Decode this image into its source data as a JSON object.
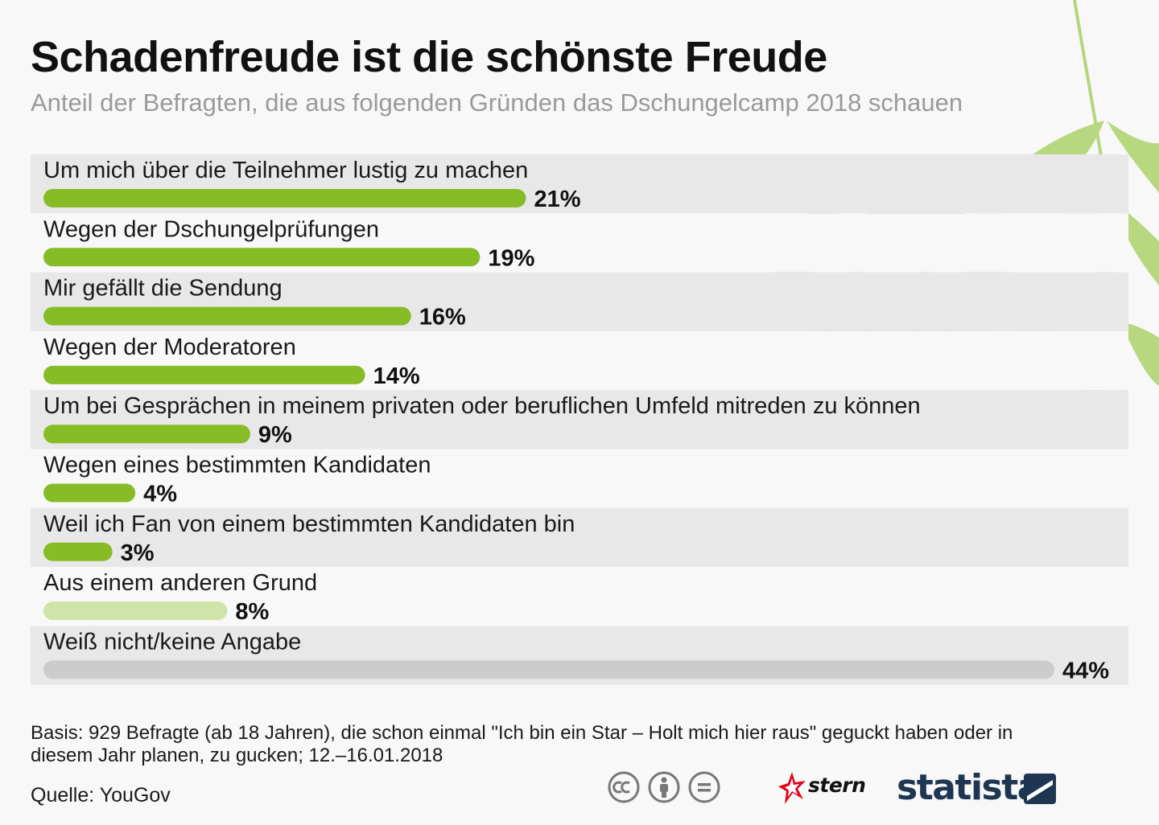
{
  "header": {
    "title": "Schadenfreude ist die schönste Freude",
    "subtitle": "Anteil der Befragten, die aus folgenden Gründen das Dschungelcamp 2018 schauen"
  },
  "chart_data": {
    "type": "bar",
    "orientation": "horizontal",
    "categories": [
      "Um mich über die Teilnehmer lustig zu machen",
      "Wegen der Dschungelprüfungen",
      "Mir gefällt die Sendung",
      "Wegen der Moderatoren",
      "Um bei Gesprächen in meinem privaten oder beruflichen Umfeld mitreden zu können",
      "Wegen eines bestimmten Kandidaten",
      "Weil ich Fan von einem bestimmten Kandidaten bin",
      "Aus einem anderen Grund",
      "Weiß nicht/keine Angabe"
    ],
    "values": [
      21,
      19,
      16,
      14,
      9,
      4,
      3,
      8,
      44
    ],
    "value_labels": [
      "21%",
      "19%",
      "16%",
      "14%",
      "9%",
      "4%",
      "3%",
      "8%",
      "44%"
    ],
    "bar_colors": [
      "#86bc25",
      "#86bc25",
      "#86bc25",
      "#86bc25",
      "#86bc25",
      "#86bc25",
      "#86bc25",
      "#cfe4a8",
      "#cccccc"
    ],
    "row_shading": [
      "#e8e8e8",
      "#f8f8f8"
    ],
    "xlim": [
      0,
      44
    ],
    "grid": false,
    "legend": "none"
  },
  "footer": {
    "note": "Basis: 929 Befragte (ab 18 Jahren), die schon einmal \"Ich bin ein Star – Holt mich hier raus\" geguckt haben oder in diesem Jahr planen, zu gucken; 12.–16.01.2018",
    "source": "Quelle: YouGov",
    "stern_logo": "stern",
    "statista_logo": "statista"
  },
  "icons": [
    "cc-icon",
    "by-attribution-icon",
    "nd-equal-icon",
    "stern-star-icon",
    "statista-mark-icon",
    "monkey-illustration",
    "leaf-branch-illustration"
  ]
}
